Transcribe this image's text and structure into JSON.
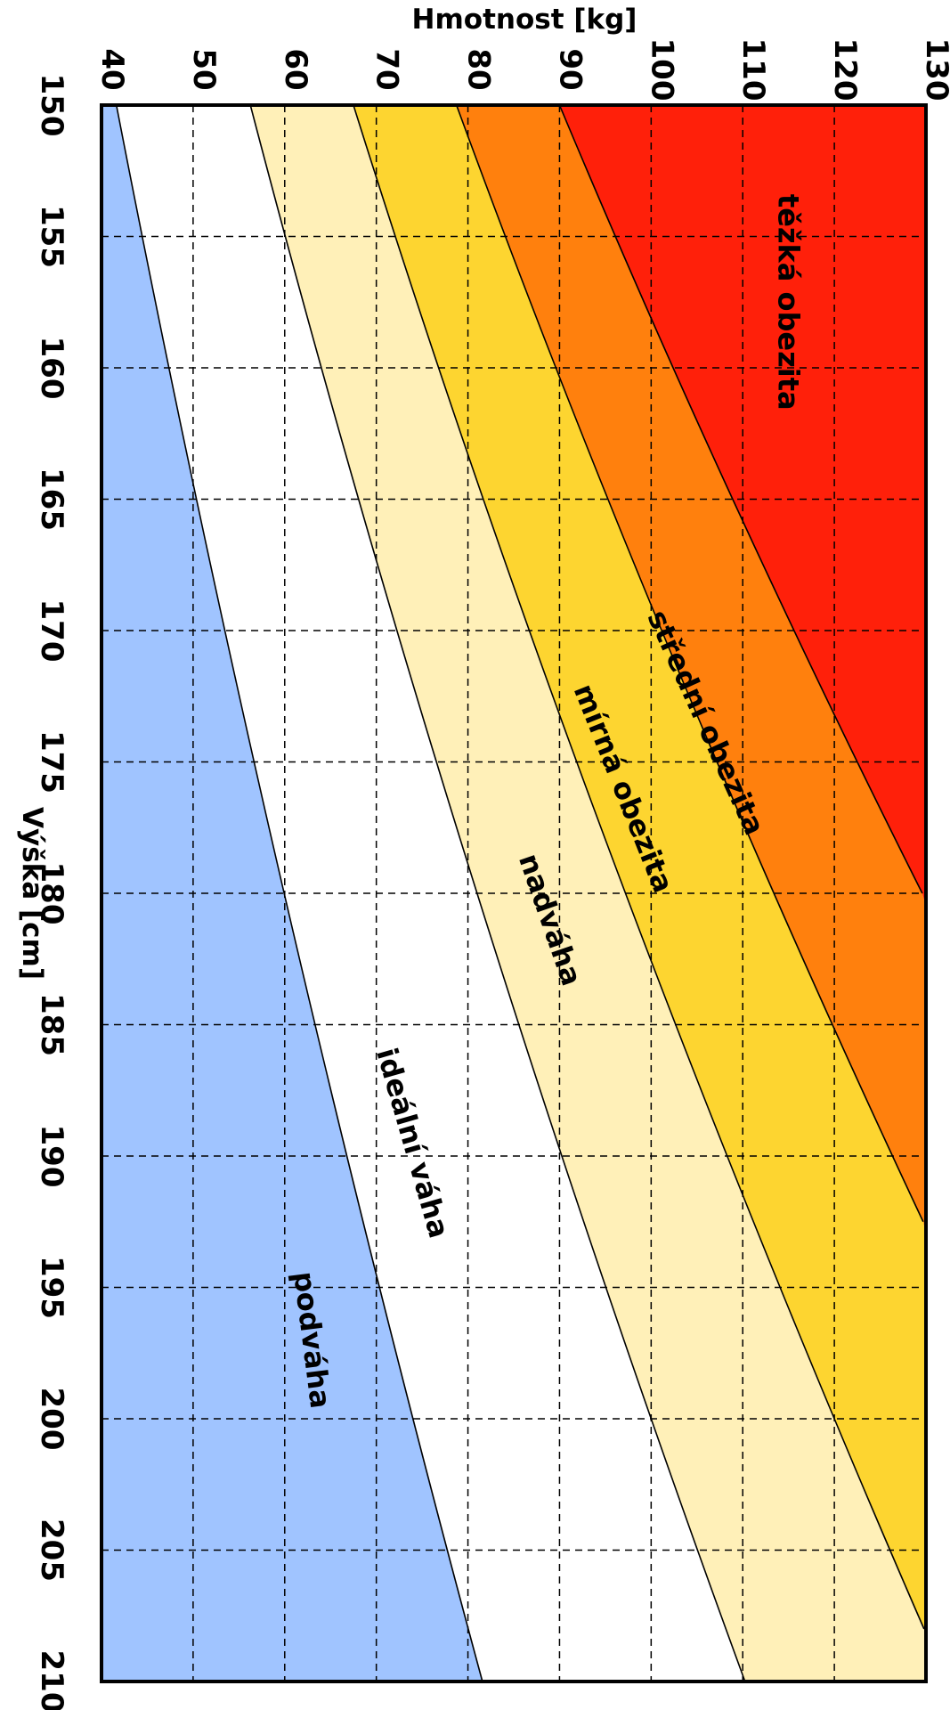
{
  "chart_data": {
    "type": "area",
    "xlabel": "Výška [cm]",
    "ylabel": "Hmotnost [kg]",
    "xlim": [
      150,
      210
    ],
    "ylim": [
      40,
      130
    ],
    "x_ticks": [
      150,
      155,
      160,
      165,
      170,
      175,
      180,
      185,
      190,
      195,
      200,
      205,
      210
    ],
    "y_ticks": [
      40,
      50,
      60,
      70,
      80,
      90,
      100,
      110,
      120,
      130
    ],
    "grid": true,
    "orientation": "rotated 90° clockwise: height axis runs down the left side, weight axis runs along the top",
    "bmi_thresholds": [
      18.5,
      25,
      30,
      35,
      40
    ],
    "regions": [
      {
        "name": "podváha",
        "bmi_range": [
          0,
          18.5
        ],
        "color": "#a0c4ff",
        "label_at": {
          "x": 197,
          "y": 63
        }
      },
      {
        "name": "ideální váha",
        "bmi_range": [
          18.5,
          25
        ],
        "color": "#ffffff",
        "label_at": {
          "x": 189.5,
          "y": 74
        }
      },
      {
        "name": "nadváha",
        "bmi_range": [
          25,
          30
        ],
        "color": "#fff0b8",
        "label_at": {
          "x": 181,
          "y": 89
        }
      },
      {
        "name": "mírná obezita",
        "bmi_range": [
          30,
          35
        ],
        "color": "#fdd530",
        "label_at": {
          "x": 176,
          "y": 97
        }
      },
      {
        "name": "střední obezita",
        "bmi_range": [
          35,
          40
        ],
        "color": "#ff800d",
        "label_at": {
          "x": 173.5,
          "y": 106
        }
      },
      {
        "name": "těžká obezita",
        "bmi_range": [
          40,
          999
        ],
        "color": "#ff200a",
        "label_at": {
          "x": 157.5,
          "y": 115
        }
      }
    ]
  }
}
